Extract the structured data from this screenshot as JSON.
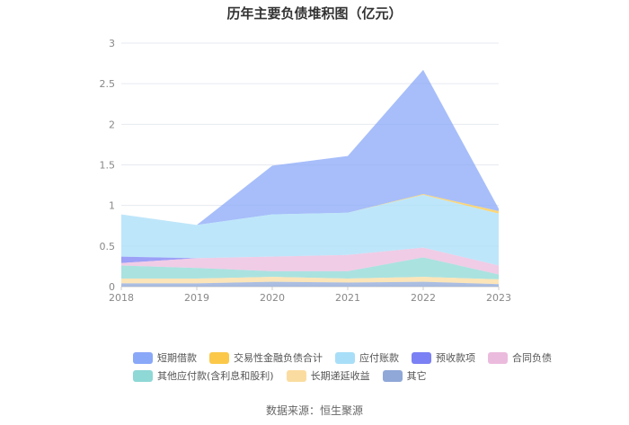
{
  "chart_data": {
    "type": "area",
    "title": "历年主要负债堆积图（亿元）",
    "categories": [
      "2018",
      "2019",
      "2020",
      "2021",
      "2022",
      "2023"
    ],
    "ylim": [
      0,
      3
    ],
    "y_ticks": [
      "0",
      "0.5",
      "1",
      "1.5",
      "2",
      "2.5",
      "3"
    ],
    "stacked": true,
    "grid": "horizontal",
    "legend_position": "bottom",
    "series": [
      {
        "name": "短期借款",
        "color": "#8aa8f8",
        "values": [
          0.0,
          0.0,
          0.6,
          0.7,
          1.53,
          0.03
        ]
      },
      {
        "name": "交易性金融负债合计",
        "color": "#fbc84a",
        "values": [
          0.0,
          0.0,
          0.0,
          0.0,
          0.01,
          0.03
        ]
      },
      {
        "name": "应付账款",
        "color": "#a8def8",
        "values": [
          0.52,
          0.41,
          0.52,
          0.52,
          0.65,
          0.64
        ]
      },
      {
        "name": "预收款项",
        "color": "#7b80f4",
        "values": [
          0.08,
          0.0,
          0.0,
          0.0,
          0.0,
          0.0
        ]
      },
      {
        "name": "合同负债",
        "color": "#ebbbdd",
        "values": [
          0.03,
          0.12,
          0.18,
          0.2,
          0.12,
          0.11
        ]
      },
      {
        "name": "其他应付款(含利息和股利)",
        "color": "#8ed8d6",
        "values": [
          0.16,
          0.13,
          0.07,
          0.09,
          0.24,
          0.06
        ]
      },
      {
        "name": "长期递延收益",
        "color": "#fbdca0",
        "values": [
          0.06,
          0.06,
          0.06,
          0.05,
          0.06,
          0.06
        ]
      },
      {
        "name": "其它",
        "color": "#8fa8d8",
        "values": [
          0.04,
          0.04,
          0.06,
          0.05,
          0.06,
          0.03
        ]
      }
    ]
  },
  "legend_rows": [
    [
      0,
      1,
      2,
      3,
      4
    ],
    [
      5,
      6,
      7
    ]
  ],
  "source_text": "数据来源：恒生聚源"
}
